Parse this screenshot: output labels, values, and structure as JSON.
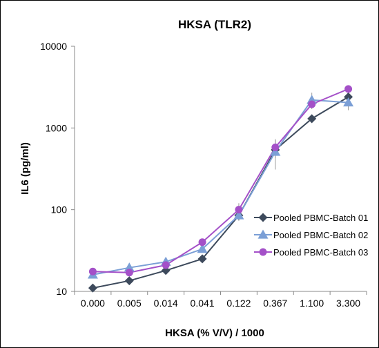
{
  "chart_data": {
    "type": "line",
    "title": "HKSA (TLR2)",
    "xlabel": "HKSA (% V/V) / 1000",
    "ylabel": "IL6 (pg/ml)",
    "yscale": "log",
    "ylim": [
      10,
      10000
    ],
    "y_ticks": [
      "10",
      "100",
      "1000",
      "10000"
    ],
    "categories": [
      "0.000",
      "0.005",
      "0.014",
      "0.041",
      "0.122",
      "0.367",
      "1.100",
      "3.300"
    ],
    "grid": false,
    "legend_position": "right",
    "series": [
      {
        "name": "Pooled PBMC-Batch 01",
        "color": "#3d4a5c",
        "marker": "diamond",
        "values": [
          11,
          13.5,
          18,
          25,
          85,
          540,
          1300,
          2400
        ],
        "errors": [
          0.5,
          0.8,
          1,
          1.5,
          8,
          80,
          150,
          300
        ]
      },
      {
        "name": "Pooled PBMC-Batch 02",
        "color": "#7b9fd6",
        "marker": "triangle",
        "values": [
          16,
          19.5,
          23,
          33,
          85,
          510,
          2200,
          2050
        ],
        "errors": [
          0.8,
          1,
          1.5,
          2,
          12,
          200,
          500,
          400
        ]
      },
      {
        "name": "Pooled PBMC-Batch 03",
        "color": "#a450c8",
        "marker": "circle",
        "values": [
          17.5,
          17,
          21,
          40,
          100,
          580,
          1950,
          3000
        ],
        "errors": [
          0.8,
          0.8,
          1,
          2,
          20,
          150,
          200,
          200
        ]
      }
    ]
  }
}
